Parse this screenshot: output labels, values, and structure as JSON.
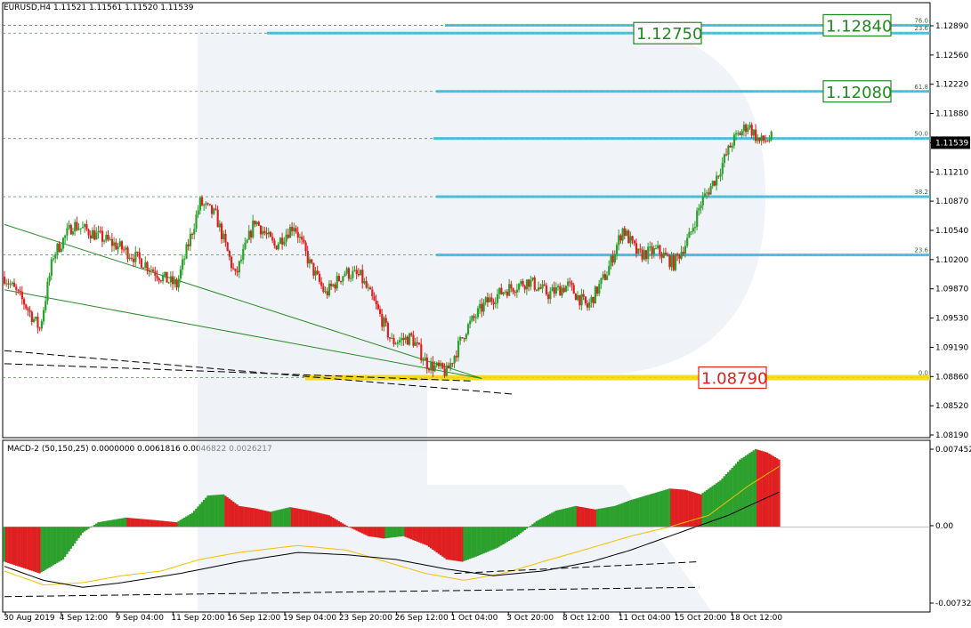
{
  "window": {
    "header": "EURUSD,H4  1.11521 1.11561 1.11520 1.11539",
    "macd_header": "MACD-2 (50,150,25) 0.0000000 0.0061816 0.0046822 0.0026217"
  },
  "colors": {
    "bull": "#2ca02c",
    "bear": "#e02020",
    "fib_line": "#3fb8d8",
    "fib_zero_band": "#f3d400",
    "label_green": "#1f8a1f",
    "label_red": "#e02020",
    "grid": "#000000",
    "signal": "#f0c000",
    "macd_line": "#000000"
  },
  "chart_data": [
    {
      "type": "candlestick",
      "symbol": "EURUSD",
      "timeframe": "H4",
      "current_price": "1.11539",
      "ylim": [
        1.081,
        1.131
      ],
      "y_ticks": [
        "1.12890",
        "1.12560",
        "1.12220",
        "1.11880",
        "1.11539",
        "1.11210",
        "1.10870",
        "1.10540",
        "1.10200",
        "1.09870",
        "1.09530",
        "1.09190",
        "1.08860",
        "1.08520",
        "1.08190"
      ],
      "x_ticks": [
        "30 Aug 2019",
        "4 Sep 12:00",
        "9 Sep 04:00",
        "11 Sep 20:00",
        "16 Sep 12:00",
        "19 Sep 04:00",
        "23 Sep 20:00",
        "26 Sep 12:00",
        "1 Oct 04:00",
        "3 Oct 20:00",
        "8 Oct 12:00",
        "11 Oct 04:00",
        "15 Oct 20:00",
        "18 Oct 12:00"
      ],
      "close_path": [
        {
          "i": 0,
          "p": 1.0995
        },
        {
          "i": 10,
          "p": 1.0965
        },
        {
          "i": 18,
          "p": 1.0935
        },
        {
          "i": 25,
          "p": 1.102
        },
        {
          "i": 35,
          "p": 1.1055
        },
        {
          "i": 45,
          "p": 1.1045
        },
        {
          "i": 58,
          "p": 1.103
        },
        {
          "i": 72,
          "p": 1.101
        },
        {
          "i": 80,
          "p": 1.0995
        },
        {
          "i": 88,
          "p": 1.0985
        },
        {
          "i": 100,
          "p": 1.108
        },
        {
          "i": 108,
          "p": 1.1065
        },
        {
          "i": 118,
          "p": 1.0995
        },
        {
          "i": 128,
          "p": 1.106
        },
        {
          "i": 138,
          "p": 1.103
        },
        {
          "i": 148,
          "p": 1.1055
        },
        {
          "i": 156,
          "p": 1.101
        },
        {
          "i": 164,
          "p": 1.0975
        },
        {
          "i": 174,
          "p": 1.1
        },
        {
          "i": 182,
          "p": 1.0995
        },
        {
          "i": 190,
          "p": 1.096
        },
        {
          "i": 198,
          "p": 1.092
        },
        {
          "i": 208,
          "p": 1.0925
        },
        {
          "i": 216,
          "p": 1.0895
        },
        {
          "i": 226,
          "p": 1.0885
        },
        {
          "i": 236,
          "p": 1.0935
        },
        {
          "i": 246,
          "p": 1.0965
        },
        {
          "i": 256,
          "p": 1.098
        },
        {
          "i": 268,
          "p": 1.099
        },
        {
          "i": 278,
          "p": 1.0975
        },
        {
          "i": 288,
          "p": 1.0985
        },
        {
          "i": 298,
          "p": 1.096
        },
        {
          "i": 308,
          "p": 1.1
        },
        {
          "i": 316,
          "p": 1.105
        },
        {
          "i": 324,
          "p": 1.102
        },
        {
          "i": 334,
          "p": 1.1025
        },
        {
          "i": 342,
          "p": 1.101
        },
        {
          "i": 350,
          "p": 1.104
        },
        {
          "i": 356,
          "p": 1.108
        },
        {
          "i": 364,
          "p": 1.111
        },
        {
          "i": 372,
          "p": 1.115
        },
        {
          "i": 380,
          "p": 1.117
        },
        {
          "i": 386,
          "p": 1.115
        },
        {
          "i": 392,
          "p": 1.1154
        }
      ],
      "fibonacci_levels": [
        {
          "label": "76.0",
          "price": 1.1284
        },
        {
          "label": "23.6",
          "price": 1.1275
        },
        {
          "label": "61.8",
          "price": 1.1208
        },
        {
          "label": "50.0",
          "price": 1.11539
        },
        {
          "label": "38.2",
          "price": 1.1087
        },
        {
          "label": "23.6",
          "price": 1.102
        },
        {
          "label": "0.0",
          "price": 1.0879
        }
      ],
      "price_labels": [
        {
          "text": "1.12840",
          "price": 1.1284,
          "color": "green"
        },
        {
          "text": "1.12750",
          "price": 1.1275,
          "color": "green"
        },
        {
          "text": "1.12080",
          "price": 1.1208,
          "color": "green"
        },
        {
          "text": "1.08790",
          "price": 1.0879,
          "color": "red"
        }
      ],
      "trendlines": [
        {
          "color": "green",
          "from": {
            "i": 0,
            "p": 1.1055
          },
          "to": {
            "i": 244,
            "p": 1.0878
          }
        },
        {
          "color": "green",
          "from": {
            "i": 0,
            "p": 1.098
          },
          "to": {
            "i": 244,
            "p": 1.0878
          }
        },
        {
          "color": "black-dashed",
          "from": {
            "i": 0,
            "p": 1.091
          },
          "to": {
            "i": 260,
            "p": 1.086
          }
        },
        {
          "color": "black-dashed",
          "from": {
            "i": 0,
            "p": 1.0895
          },
          "to": {
            "i": 240,
            "p": 1.0875
          }
        }
      ]
    },
    {
      "type": "histogram",
      "name": "MACD-2 (50,150,25)",
      "ylim": [
        -0.007324,
        0.007452
      ],
      "y_ticks": [
        "0.0074525",
        "0.00",
        "-0.0073245"
      ],
      "histogram_path": [
        {
          "i": 0,
          "v": -0.003
        },
        {
          "i": 18,
          "v": -0.004
        },
        {
          "i": 30,
          "v": -0.0028
        },
        {
          "i": 40,
          "v": -0.0005
        },
        {
          "i": 48,
          "v": 0.0004
        },
        {
          "i": 62,
          "v": 0.0008
        },
        {
          "i": 76,
          "v": 0.0006
        },
        {
          "i": 88,
          "v": 0.0004
        },
        {
          "i": 96,
          "v": 0.0012
        },
        {
          "i": 104,
          "v": 0.0027
        },
        {
          "i": 112,
          "v": 0.0028
        },
        {
          "i": 120,
          "v": 0.0018
        },
        {
          "i": 128,
          "v": 0.0016
        },
        {
          "i": 136,
          "v": 0.0013
        },
        {
          "i": 146,
          "v": 0.0017
        },
        {
          "i": 156,
          "v": 0.0014
        },
        {
          "i": 166,
          "v": 0.001
        },
        {
          "i": 176,
          "v": 0.0
        },
        {
          "i": 186,
          "v": -0.0008
        },
        {
          "i": 194,
          "v": -0.001
        },
        {
          "i": 204,
          "v": -0.0008
        },
        {
          "i": 216,
          "v": -0.0016
        },
        {
          "i": 226,
          "v": -0.0028
        },
        {
          "i": 234,
          "v": -0.003
        },
        {
          "i": 242,
          "v": -0.0025
        },
        {
          "i": 252,
          "v": -0.0018
        },
        {
          "i": 262,
          "v": -0.0008
        },
        {
          "i": 272,
          "v": 0.0005
        },
        {
          "i": 282,
          "v": 0.0014
        },
        {
          "i": 292,
          "v": 0.0018
        },
        {
          "i": 302,
          "v": 0.0015
        },
        {
          "i": 312,
          "v": 0.0018
        },
        {
          "i": 320,
          "v": 0.0023
        },
        {
          "i": 330,
          "v": 0.0028
        },
        {
          "i": 340,
          "v": 0.0033
        },
        {
          "i": 348,
          "v": 0.0032
        },
        {
          "i": 356,
          "v": 0.0028
        },
        {
          "i": 366,
          "v": 0.004
        },
        {
          "i": 376,
          "v": 0.0058
        },
        {
          "i": 384,
          "v": 0.0067
        },
        {
          "i": 390,
          "v": 0.0064
        },
        {
          "i": 396,
          "v": 0.0058
        }
      ],
      "signal_path": [
        {
          "i": 0,
          "v": -0.0038
        },
        {
          "i": 20,
          "v": -0.005
        },
        {
          "i": 40,
          "v": -0.0048
        },
        {
          "i": 60,
          "v": -0.0042
        },
        {
          "i": 80,
          "v": -0.0038
        },
        {
          "i": 100,
          "v": -0.0028
        },
        {
          "i": 120,
          "v": -0.0022
        },
        {
          "i": 150,
          "v": -0.0016
        },
        {
          "i": 175,
          "v": -0.002
        },
        {
          "i": 195,
          "v": -0.003
        },
        {
          "i": 215,
          "v": -0.004
        },
        {
          "i": 235,
          "v": -0.0046
        },
        {
          "i": 255,
          "v": -0.004
        },
        {
          "i": 275,
          "v": -0.003
        },
        {
          "i": 300,
          "v": -0.0018
        },
        {
          "i": 320,
          "v": -0.0008
        },
        {
          "i": 340,
          "v": 0.0
        },
        {
          "i": 360,
          "v": 0.001
        },
        {
          "i": 380,
          "v": 0.0035
        },
        {
          "i": 396,
          "v": 0.0052
        }
      ],
      "macd_line_path": [
        {
          "i": 0,
          "v": -0.0034
        },
        {
          "i": 20,
          "v": -0.0046
        },
        {
          "i": 40,
          "v": -0.0052
        },
        {
          "i": 60,
          "v": -0.0048
        },
        {
          "i": 90,
          "v": -0.004
        },
        {
          "i": 120,
          "v": -0.003
        },
        {
          "i": 150,
          "v": -0.0022
        },
        {
          "i": 175,
          "v": -0.0024
        },
        {
          "i": 200,
          "v": -0.0028
        },
        {
          "i": 225,
          "v": -0.0036
        },
        {
          "i": 250,
          "v": -0.0042
        },
        {
          "i": 275,
          "v": -0.0038
        },
        {
          "i": 300,
          "v": -0.003
        },
        {
          "i": 320,
          "v": -0.002
        },
        {
          "i": 345,
          "v": -0.0005
        },
        {
          "i": 370,
          "v": 0.001
        },
        {
          "i": 396,
          "v": 0.003
        }
      ],
      "dashed_lines": [
        {
          "from": {
            "i": 0,
            "v": -0.006
          },
          "to": {
            "i": 355,
            "v": -0.0052
          }
        },
        {
          "from": {
            "i": 230,
            "v": -0.004
          },
          "to": {
            "i": 355,
            "v": -0.003
          }
        }
      ]
    }
  ]
}
